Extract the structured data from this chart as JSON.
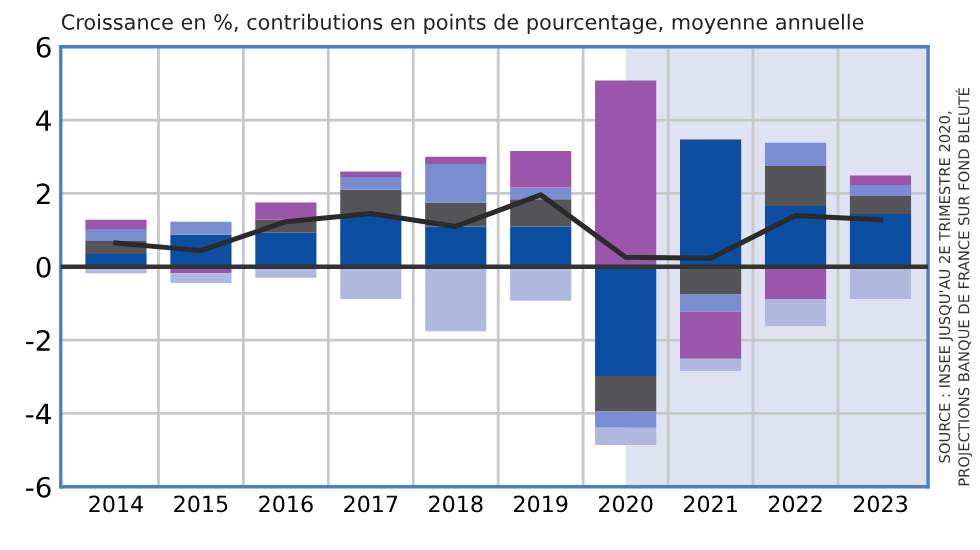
{
  "chart_data": {
    "type": "bar",
    "stacked": true,
    "title": "Croissance en %, contributions en points de pourcentage, moyenne annuelle",
    "x": [
      2014,
      2015,
      2016,
      2017,
      2018,
      2019,
      2020,
      2021,
      2022,
      2023
    ],
    "xlim": [
      2013.35,
      2023.56
    ],
    "xticks": [
      2014,
      2015,
      2016,
      2017,
      2018,
      2019,
      2020,
      2021,
      2022,
      2023
    ],
    "ylim": [
      -6,
      6
    ],
    "yticks": [
      -6,
      -4,
      -2,
      0,
      2,
      4,
      6
    ],
    "grid": "y",
    "series": [
      {
        "color": "#0b4ea2",
        "values": [
          0.35,
          0.87,
          0.93,
          1.4,
          1.1,
          1.1,
          -2.98,
          3.47,
          1.66,
          1.44
        ]
      },
      {
        "color": "#555558",
        "values": [
          0.35,
          null,
          0.35,
          0.7,
          0.65,
          0.74,
          -0.97,
          -0.76,
          1.09,
          0.49
        ]
      },
      {
        "color": "#7a8dd0",
        "values": [
          0.33,
          0.36,
          null,
          0.35,
          1.05,
          0.32,
          -0.44,
          -0.47,
          0.63,
          0.3
        ]
      },
      {
        "color": "#9b55ab",
        "values": [
          0.25,
          -0.18,
          0.47,
          0.15,
          0.2,
          1.0,
          5.08,
          -1.28,
          -0.88,
          0.26
        ]
      },
      {
        "color": "#b0b8e0",
        "values": [
          -0.18,
          -0.26,
          -0.3,
          -0.88,
          -1.76,
          -0.93,
          -0.47,
          -0.33,
          -0.74,
          -0.88
        ]
      },
      {
        "type": "line",
        "color": "#2b2b2b",
        "values": [
          0.65,
          0.44,
          1.23,
          1.45,
          1.1,
          1.96,
          0.26,
          0.23,
          1.4,
          1.28
        ]
      }
    ],
    "ref_lines": [
      {
        "axis": "y",
        "value": 0,
        "color": "#333333"
      },
      {
        "axis": "x",
        "value": 2014.5,
        "color": "#c8c8c8"
      },
      {
        "axis": "x",
        "value": 2015.5,
        "color": "#c8c8c8"
      },
      {
        "axis": "x",
        "value": 2016.5,
        "color": "#c8c8c8"
      },
      {
        "axis": "x",
        "value": 2017.5,
        "color": "#c8c8c8"
      },
      {
        "axis": "x",
        "value": 2018.5,
        "color": "#c8c8c8"
      },
      {
        "axis": "x",
        "value": 2019.5,
        "color": "#c8c8c8"
      },
      {
        "axis": "x",
        "value": 2020.5,
        "color": "#c8c8c8"
      },
      {
        "axis": "x",
        "value": 2021.5,
        "color": "#c8c8c8"
      },
      {
        "axis": "x",
        "value": 2022.5,
        "color": "#c8c8c8"
      }
    ],
    "bands": [
      {
        "axis": "x",
        "from": 2020,
        "to": 2023.56,
        "color": "#dfe2f1"
      }
    ],
    "annotations": [
      "SOURCE : INSEE JUSQU'AU 2E TRIMESTRE 2020,\nPROJECTIONS BANQUE DE FRANCE SUR FOND BLEUTÉ"
    ]
  }
}
